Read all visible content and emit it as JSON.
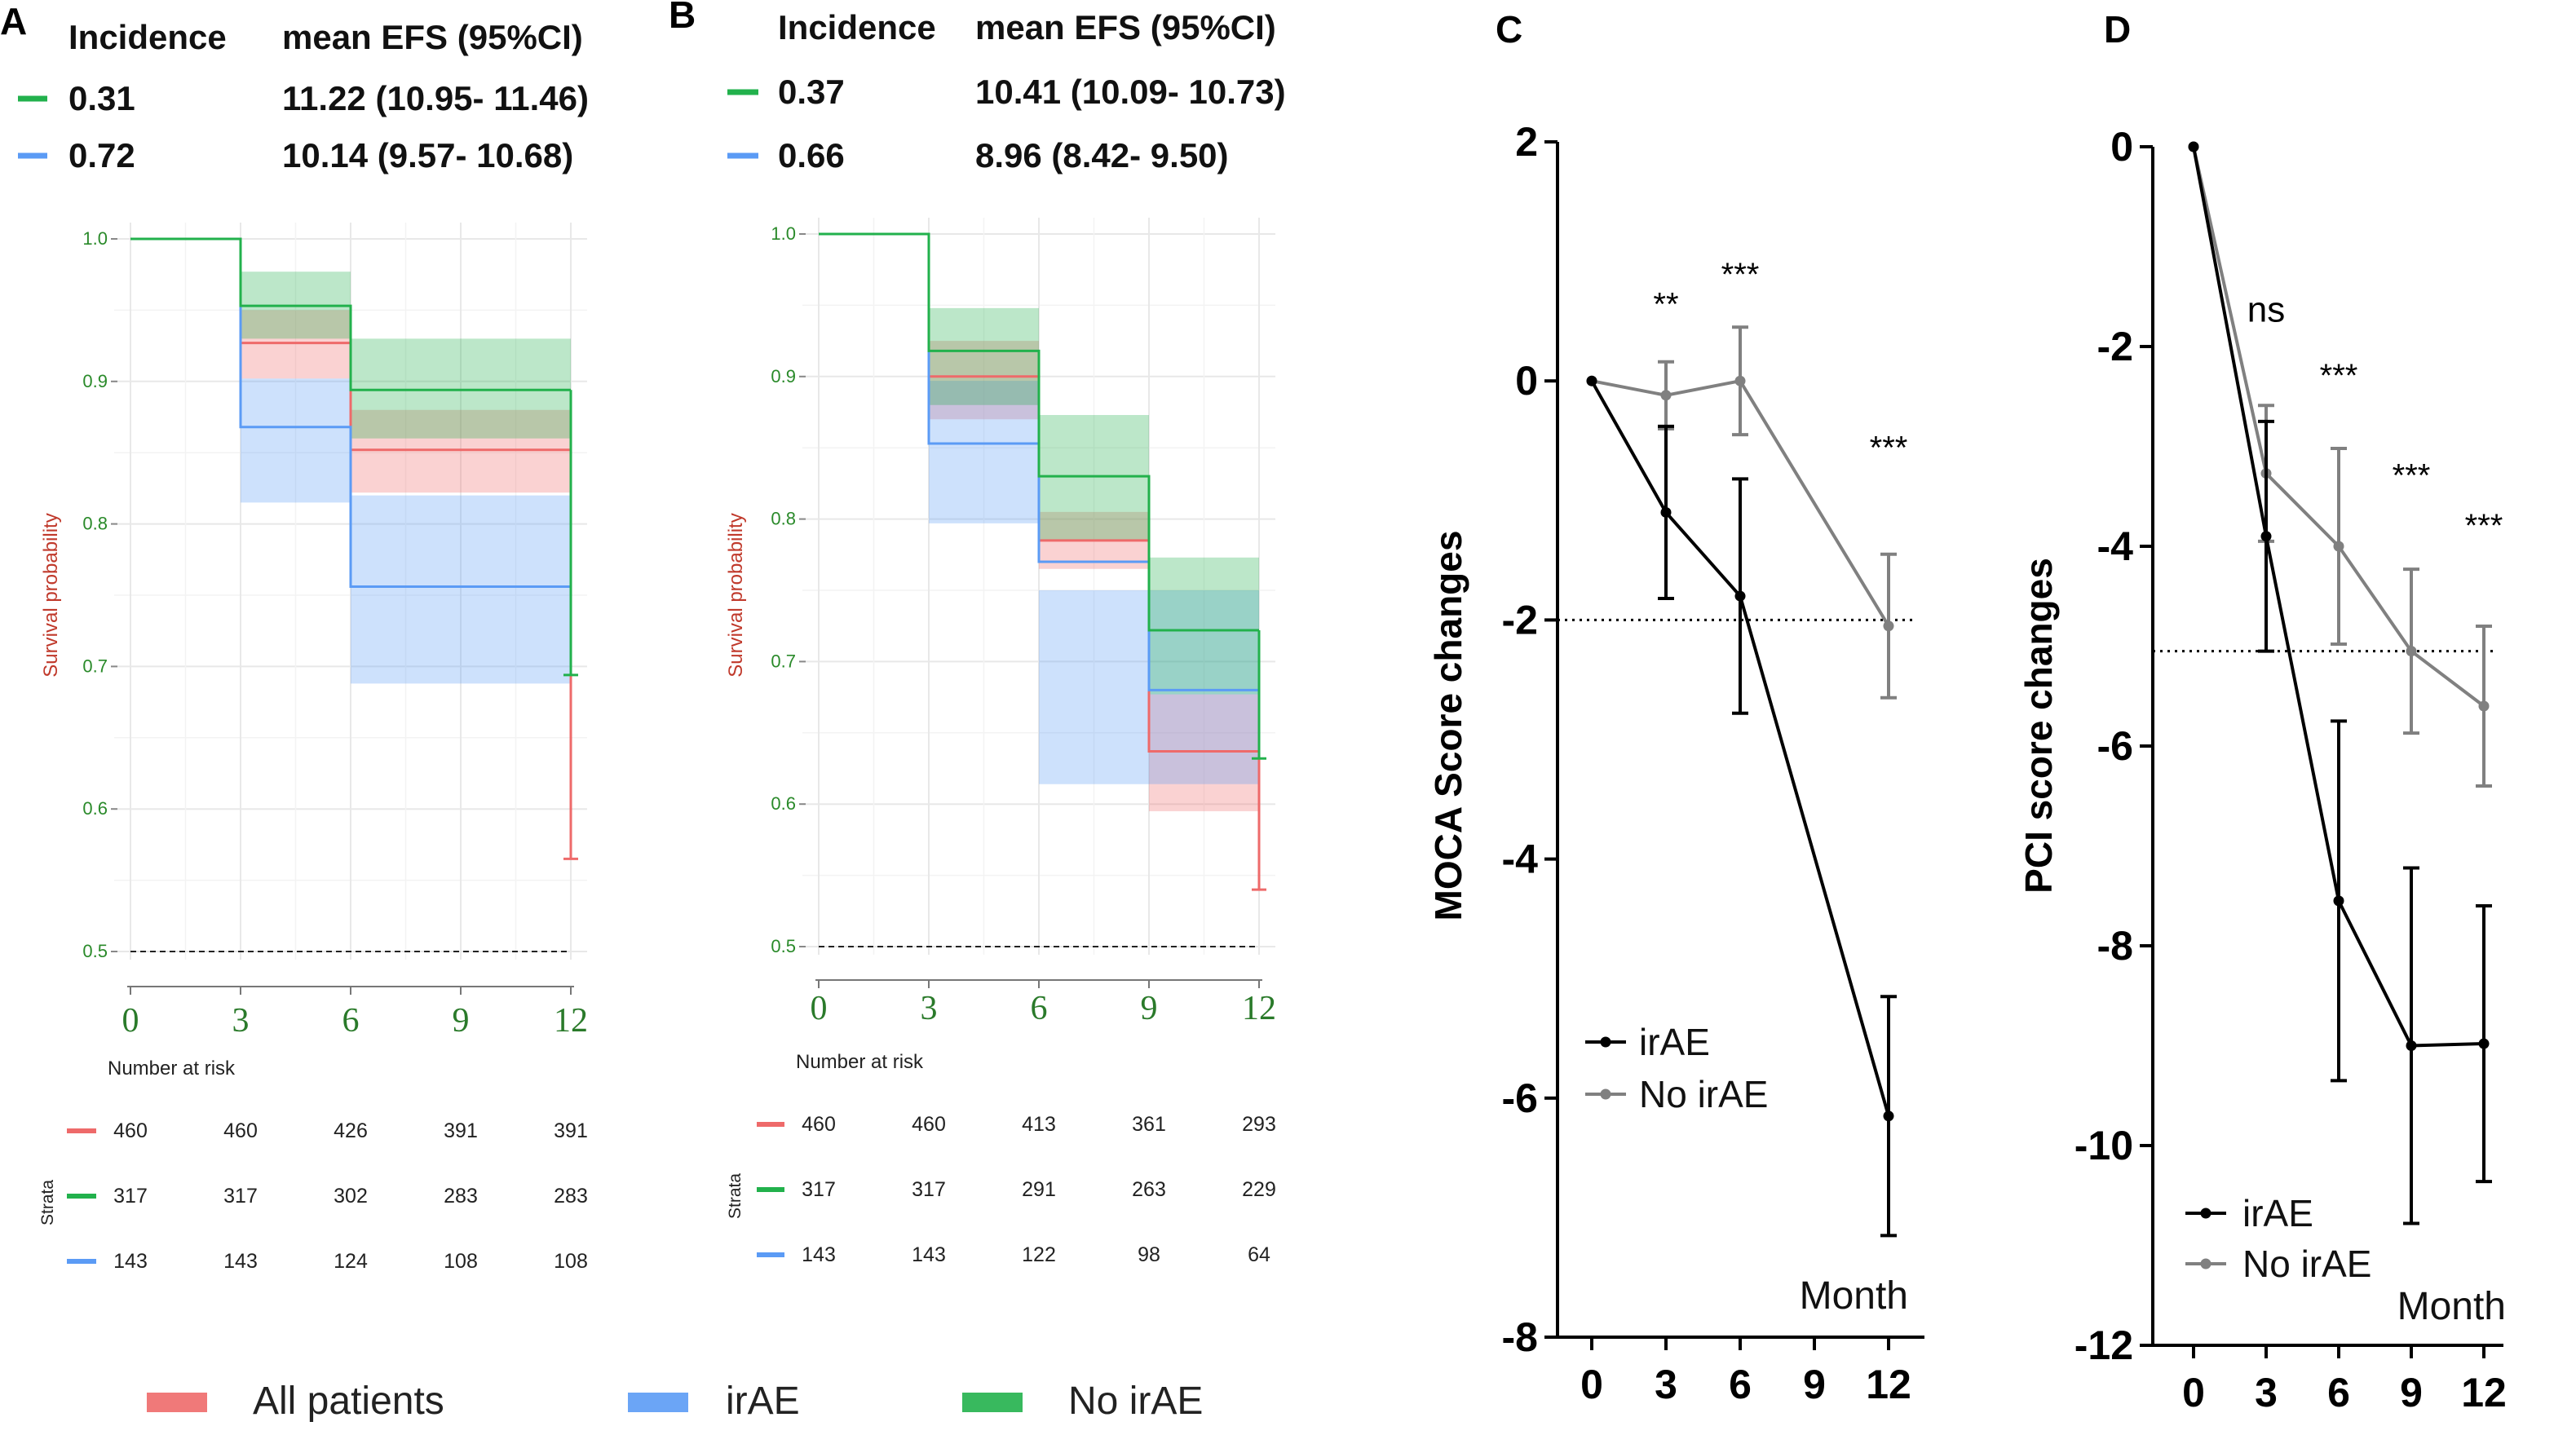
{
  "chart_data": [
    {
      "panel": "A",
      "type": "line",
      "subtype": "kaplan-meier",
      "summary_headers": [
        "Incidence",
        "mean EFS (95%CI)"
      ],
      "summary_rows": [
        {
          "color": "#22b14c",
          "incidence": "0.31",
          "efs": "11.22 (10.95- 11.46)"
        },
        {
          "color": "#5b9bf5",
          "incidence": "0.72",
          "efs": "10.14 (9.57- 10.68)"
        }
      ],
      "ylabel": "Survival probability",
      "xticks": [
        "0",
        "3",
        "6",
        "9",
        "12"
      ],
      "yticks": [
        "0.5",
        "0.6",
        "0.7",
        "0.8",
        "0.9",
        "1.0"
      ],
      "xlim": [
        0,
        12
      ],
      "ylim": [
        0.5,
        1.0
      ],
      "reference_line": 0.5,
      "series": [
        {
          "name": "All patients",
          "color": "#ee6a6a",
          "x": [
            0,
            3,
            6,
            12
          ],
          "y": [
            1.0,
            0.927,
            0.852,
            0.852
          ],
          "lower": [
            1.0,
            0.902,
            0.822,
            0.822
          ],
          "upper": [
            1.0,
            0.95,
            0.88,
            0.88
          ],
          "censor_drop": [
            0.852,
            0.565
          ]
        },
        {
          "name": "irAE",
          "color": "#5b9bf5",
          "x": [
            0,
            3,
            6,
            12
          ],
          "y": [
            1.0,
            0.868,
            0.756,
            0.756
          ],
          "lower": [
            1.0,
            0.815,
            0.688,
            0.688
          ],
          "upper": [
            1.0,
            0.902,
            0.82,
            0.82
          ],
          "censor_drop": null
        },
        {
          "name": "No irAE",
          "color": "#22b14c",
          "x": [
            0,
            3,
            6,
            12
          ],
          "y": [
            1.0,
            0.953,
            0.894,
            0.894
          ],
          "lower": [
            1.0,
            0.93,
            0.86,
            0.86
          ],
          "upper": [
            1.0,
            0.977,
            0.93,
            0.93
          ],
          "censor_drop": [
            0.894,
            0.694
          ]
        }
      ],
      "risk_table": {
        "title": "Number at risk",
        "strata_label": "Strata",
        "rows": [
          {
            "color": "#ee6a6a",
            "values": [
              "460",
              "460",
              "426",
              "391",
              "391"
            ]
          },
          {
            "color": "#22b14c",
            "values": [
              "317",
              "317",
              "302",
              "283",
              "283"
            ]
          },
          {
            "color": "#5b9bf5",
            "values": [
              "143",
              "143",
              "124",
              "108",
              "108"
            ]
          }
        ]
      }
    },
    {
      "panel": "B",
      "type": "line",
      "subtype": "kaplan-meier",
      "summary_headers": [
        "Incidence",
        "mean EFS (95%CI)"
      ],
      "summary_rows": [
        {
          "color": "#22b14c",
          "incidence": "0.37",
          "efs": "10.41 (10.09- 10.73)"
        },
        {
          "color": "#5b9bf5",
          "incidence": "0.66",
          "efs": "8.96 (8.42- 9.50)"
        }
      ],
      "ylabel": "Survival probability",
      "xticks": [
        "0",
        "3",
        "6",
        "9",
        "12"
      ],
      "yticks": [
        "0.5",
        "0.6",
        "0.7",
        "0.8",
        "0.9",
        "1.0"
      ],
      "xlim": [
        0,
        12
      ],
      "ylim": [
        0.5,
        1.0
      ],
      "reference_line": 0.5,
      "series": [
        {
          "name": "All patients",
          "color": "#ee6a6a",
          "x": [
            0,
            3,
            6,
            9,
            12
          ],
          "y": [
            1.0,
            0.9,
            0.785,
            0.637,
            0.637
          ],
          "lower": [
            1.0,
            0.87,
            0.765,
            0.595,
            0.595
          ],
          "upper": [
            1.0,
            0.925,
            0.805,
            0.677,
            0.677
          ],
          "censor_drop": [
            0.637,
            0.54
          ]
        },
        {
          "name": "irAE",
          "color": "#5b9bf5",
          "x": [
            0,
            3,
            6,
            9,
            12
          ],
          "y": [
            1.0,
            0.853,
            0.77,
            0.68,
            0.68
          ],
          "lower": [
            1.0,
            0.797,
            0.614,
            0.614,
            0.614
          ],
          "upper": [
            1.0,
            0.897,
            0.75,
            0.75,
            0.75
          ],
          "censor_drop": null
        },
        {
          "name": "No irAE",
          "color": "#22b14c",
          "x": [
            0,
            3,
            6,
            9,
            12
          ],
          "y": [
            1.0,
            0.918,
            0.83,
            0.722,
            0.722
          ],
          "lower": [
            1.0,
            0.88,
            0.785,
            0.677,
            0.677
          ],
          "upper": [
            1.0,
            0.948,
            0.873,
            0.773,
            0.773
          ],
          "censor_drop": [
            0.722,
            0.632
          ]
        }
      ],
      "risk_table": {
        "title": "Number at risk",
        "strata_label": "Strata",
        "rows": [
          {
            "color": "#ee6a6a",
            "values": [
              "460",
              "460",
              "413",
              "361",
              "293"
            ]
          },
          {
            "color": "#22b14c",
            "values": [
              "317",
              "317",
              "291",
              "263",
              "229"
            ]
          },
          {
            "color": "#5b9bf5",
            "values": [
              "143",
              "143",
              "122",
              "98",
              "64"
            ]
          }
        ]
      }
    },
    {
      "panel": "C",
      "type": "line",
      "ylabel": "MOCA Score changes",
      "xlabel": "Month",
      "x": [
        0,
        3,
        6,
        9,
        12
      ],
      "xticks": [
        "0",
        "3",
        "6",
        "9",
        "12"
      ],
      "ylim": [
        -8,
        2
      ],
      "yticks": [
        "2",
        "0",
        "-2",
        "-4",
        "-6",
        "-8"
      ],
      "reference_line": -2,
      "series": [
        {
          "name": "irAE",
          "color": "#000000",
          "x": [
            0,
            3,
            6,
            12
          ],
          "y": [
            0,
            -1.1,
            -1.8,
            -6.15
          ],
          "err": [
            0,
            0.72,
            0.98,
            1.0
          ]
        },
        {
          "name": "No irAE",
          "color": "#808080",
          "x": [
            0,
            3,
            6,
            12
          ],
          "y": [
            0,
            -0.12,
            0.0,
            -2.05
          ],
          "err": [
            0,
            0.28,
            0.45,
            0.6
          ]
        }
      ],
      "annotations": [
        {
          "x": 3,
          "y": 0.55,
          "text": "**"
        },
        {
          "x": 6,
          "y": 0.8,
          "text": "***"
        },
        {
          "x": 12,
          "y": -0.65,
          "text": "***"
        }
      ]
    },
    {
      "panel": "D",
      "type": "line",
      "ylabel": "PCI score changes",
      "xlabel": "Month",
      "x": [
        0,
        3,
        6,
        9,
        12
      ],
      "xticks": [
        "0",
        "3",
        "6",
        "9",
        "12"
      ],
      "ylim": [
        -12,
        0
      ],
      "yticks": [
        "0",
        "-2",
        "-4",
        "-6",
        "-8",
        "-10",
        "-12"
      ],
      "reference_line": -5.05,
      "series": [
        {
          "name": "irAE",
          "color": "#000000",
          "x": [
            0,
            3,
            6,
            9,
            12
          ],
          "y": [
            0,
            -3.9,
            -7.55,
            -9.0,
            -8.98
          ],
          "err": [
            0,
            1.15,
            1.8,
            1.78,
            1.38
          ]
        },
        {
          "name": "No irAE",
          "color": "#808080",
          "x": [
            0,
            3,
            6,
            9,
            12
          ],
          "y": [
            0,
            -3.27,
            -4.0,
            -5.05,
            -5.6
          ],
          "err": [
            0,
            0.68,
            0.98,
            0.82,
            0.8
          ]
        }
      ],
      "annotations": [
        {
          "x": 3,
          "y": -1.75,
          "text": "ns"
        },
        {
          "x": 6,
          "y": -2.4,
          "text": "***"
        },
        {
          "x": 9,
          "y": -3.4,
          "text": "***"
        },
        {
          "x": 12,
          "y": -3.9,
          "text": "***"
        }
      ]
    }
  ],
  "legend": {
    "items": [
      {
        "label": "All patients",
        "color": "#ee6a6a"
      },
      {
        "label": "irAE",
        "color": "#5b9bf5"
      },
      {
        "label": "No irAE",
        "color": "#22b14c"
      }
    ]
  }
}
